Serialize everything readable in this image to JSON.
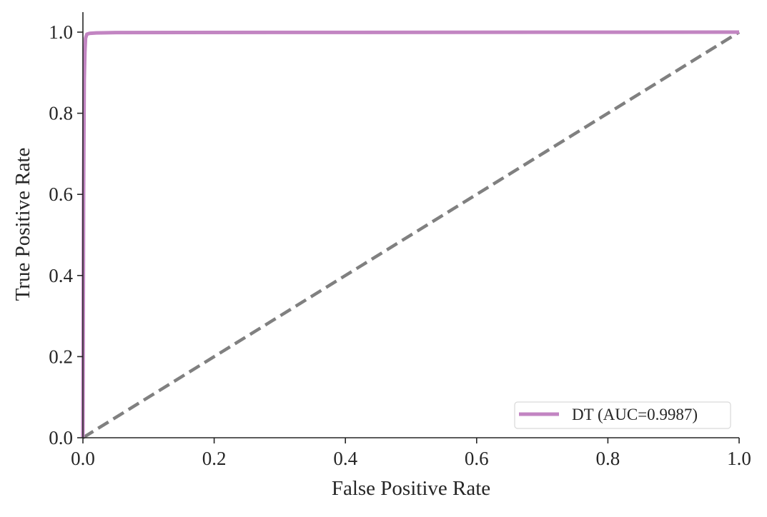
{
  "chart_data": {
    "type": "line",
    "title": "",
    "xlabel": "False Positive Rate",
    "ylabel": "True Positive Rate",
    "xlim": [
      0.0,
      1.0
    ],
    "ylim": [
      0.0,
      1.0
    ],
    "xticks": [
      "0.0",
      "0.2",
      "0.4",
      "0.6",
      "0.8",
      "1.0"
    ],
    "yticks": [
      "0.0",
      "0.2",
      "0.4",
      "0.6",
      "0.8",
      "1.0"
    ],
    "grid": false,
    "legend": {
      "position": "bottom-right",
      "entries": [
        "DT (AUC=0.9987)"
      ]
    },
    "series": [
      {
        "name": "DT (AUC=0.9987)",
        "color": "#c285c2",
        "style": "solid",
        "x": [
          0.0,
          0.001,
          0.002,
          0.003,
          0.004,
          0.006,
          0.01,
          0.02,
          0.05,
          1.0
        ],
        "y": [
          0.0,
          0.6,
          0.88,
          0.95,
          0.985,
          0.995,
          0.997,
          0.998,
          0.999,
          1.0
        ]
      },
      {
        "color": "#808080",
        "style": "dashed",
        "x": [
          0.0,
          1.0
        ],
        "y": [
          0.0,
          1.0
        ]
      }
    ]
  }
}
